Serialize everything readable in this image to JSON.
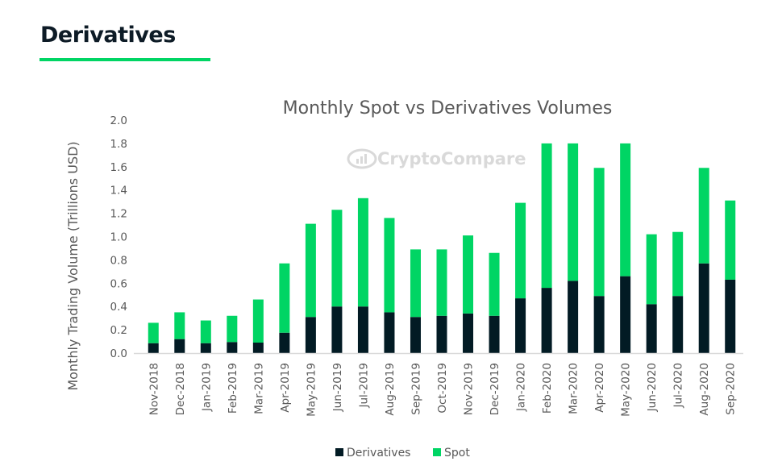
{
  "header": {
    "title": "Derivatives",
    "accent_color": "#00d564"
  },
  "watermark": {
    "text_light": "Crypto",
    "text_bold": "Compare",
    "icon": "chart-logo-icon"
  },
  "chart_data": {
    "type": "bar",
    "stacked": true,
    "title": "Monthly Spot vs Derivatives Volumes",
    "xlabel": "",
    "ylabel": "Monthly Trading Volume (Trillions USD)",
    "ylim": [
      0,
      2.0
    ],
    "yticks": [
      "0.0",
      "0.2",
      "0.4",
      "0.6",
      "0.8",
      "1.0",
      "1.2",
      "1.4",
      "1.6",
      "1.8",
      "2.0"
    ],
    "grid": false,
    "legend_position": "bottom",
    "categories": [
      "Nov-2018",
      "Dec-2018",
      "Jan-2019",
      "Feb-2019",
      "Mar-2019",
      "Apr-2019",
      "May-2019",
      "Jun-2019",
      "Jul-2019",
      "Aug-2019",
      "Sep-2019",
      "Oct-2019",
      "Nov-2019",
      "Dec-2019",
      "Jan-2020",
      "Feb-2020",
      "Mar-2020",
      "Apr-2020",
      "May-2020",
      "Jun-2020",
      "Jul-2020",
      "Aug-2020",
      "Sep-2020"
    ],
    "series": [
      {
        "name": "Derivatives",
        "color": "#021b24",
        "values": [
          0.085,
          0.12,
          0.085,
          0.095,
          0.09,
          0.175,
          0.31,
          0.4,
          0.4,
          0.35,
          0.31,
          0.32,
          0.34,
          0.32,
          0.47,
          0.56,
          0.62,
          0.49,
          0.66,
          0.42,
          0.49,
          0.77,
          0.63
        ]
      },
      {
        "name": "Spot",
        "color": "#00d564",
        "values": [
          0.175,
          0.23,
          0.195,
          0.225,
          0.37,
          0.595,
          0.8,
          0.83,
          0.93,
          0.81,
          0.58,
          0.57,
          0.67,
          0.54,
          0.82,
          1.24,
          1.18,
          1.1,
          1.14,
          0.6,
          0.55,
          0.82,
          0.68
        ]
      }
    ]
  }
}
